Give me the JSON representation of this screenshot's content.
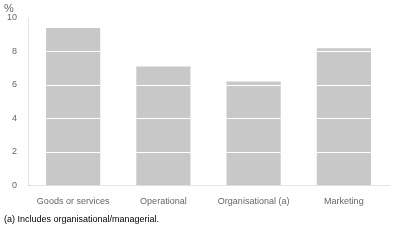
{
  "chart_data": {
    "type": "bar",
    "categories": [
      "Goods or services",
      "Operational",
      "Organisational (a)",
      "Marketing"
    ],
    "values": [
      9.4,
      7.1,
      6.2,
      8.2
    ],
    "color": "#c8c8c8",
    "ylim": [
      0,
      10
    ],
    "yticks": [
      0,
      2,
      4,
      6,
      8,
      10
    ],
    "ylabel": "%",
    "annotations": [
      "(a) Includes organisational/managerial."
    ],
    "grid": false
  }
}
